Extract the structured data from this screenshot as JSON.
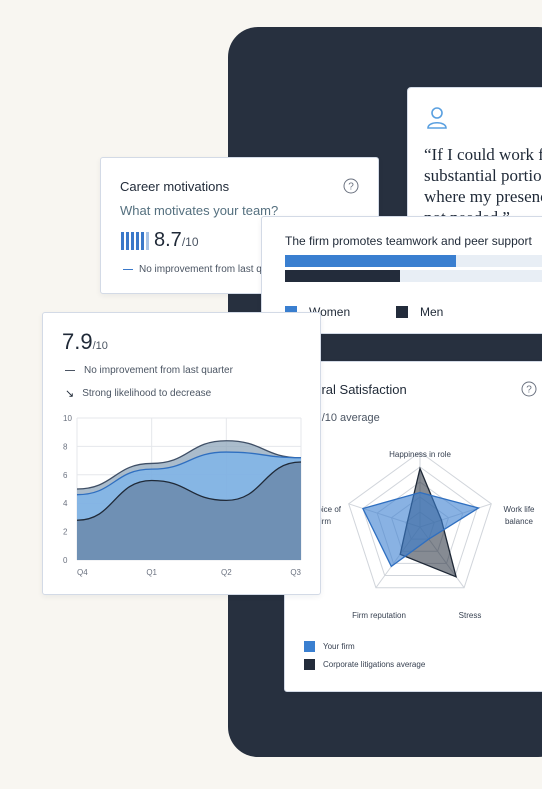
{
  "quote": {
    "lines": [
      "“If I could work fro",
      "substantial portio",
      "where my presenc",
      "not needed.”"
    ]
  },
  "career": {
    "title": "Career motivations",
    "subtitle": "What motivates your team?",
    "score": "8.7",
    "score_suffix": "/10",
    "note": "No improvement from last q"
  },
  "teamwork": {
    "statement": "The firm promotes teamwork and peer support",
    "women_value": 0.61,
    "men_value": 0.41,
    "legend": [
      "Women",
      "Men"
    ],
    "colors": {
      "women": "#3a7fd0",
      "men": "#232c3b"
    }
  },
  "satisfaction": {
    "title": "neral Satisfaction",
    "score": ".2",
    "score_suffix": "/10 average",
    "axes": [
      "Happiness in role",
      "Work life balance",
      "Stress",
      "Firm reputation",
      "Choice of firm"
    ],
    "axis_display": {
      "happiness": "Happiness in role",
      "worklife1": "Work life",
      "worklife2": "balance",
      "stress": "Stress",
      "reputation": "Firm reputation",
      "choice1": "oice of",
      "choice2": "irm"
    },
    "legend": [
      "Your firm",
      "Corporate litigations average"
    ]
  },
  "score_card": {
    "score": "7.9",
    "score_suffix": "/10",
    "note1": "No improvement from last quarter",
    "note2": "Strong likelihood to decrease",
    "arrow": "↘"
  },
  "chart_data": [
    {
      "type": "area",
      "categories": [
        "Q4",
        "Q1",
        "Q2",
        "Q3"
      ],
      "ylim": [
        0,
        10
      ],
      "yticks": [
        0,
        2,
        4,
        6,
        8,
        10
      ],
      "grid": true,
      "series": [
        {
          "values": [
            5.0,
            6.8,
            8.4,
            7.2
          ],
          "color": "#8ea5bb"
        },
        {
          "values": [
            4.6,
            6.4,
            7.6,
            7.2
          ],
          "color": "#7db4ea"
        },
        {
          "values": [
            2.8,
            5.6,
            4.2,
            6.9
          ],
          "color": "#6b8aab"
        }
      ]
    },
    {
      "type": "radar",
      "categories": [
        "Happiness in role",
        "Work life balance",
        "Stress",
        "Firm reputation",
        "Choice of firm"
      ],
      "rlim": [
        0,
        1
      ],
      "series": [
        {
          "name": "Your firm",
          "values": [
            0.46,
            0.82,
            0.2,
            0.65,
            0.8
          ],
          "color": "#3a7fd0"
        },
        {
          "name": "Corporate litigations average",
          "values": [
            0.78,
            0.3,
            0.82,
            0.45,
            0.18
          ],
          "color": "#232c3b"
        }
      ]
    }
  ]
}
